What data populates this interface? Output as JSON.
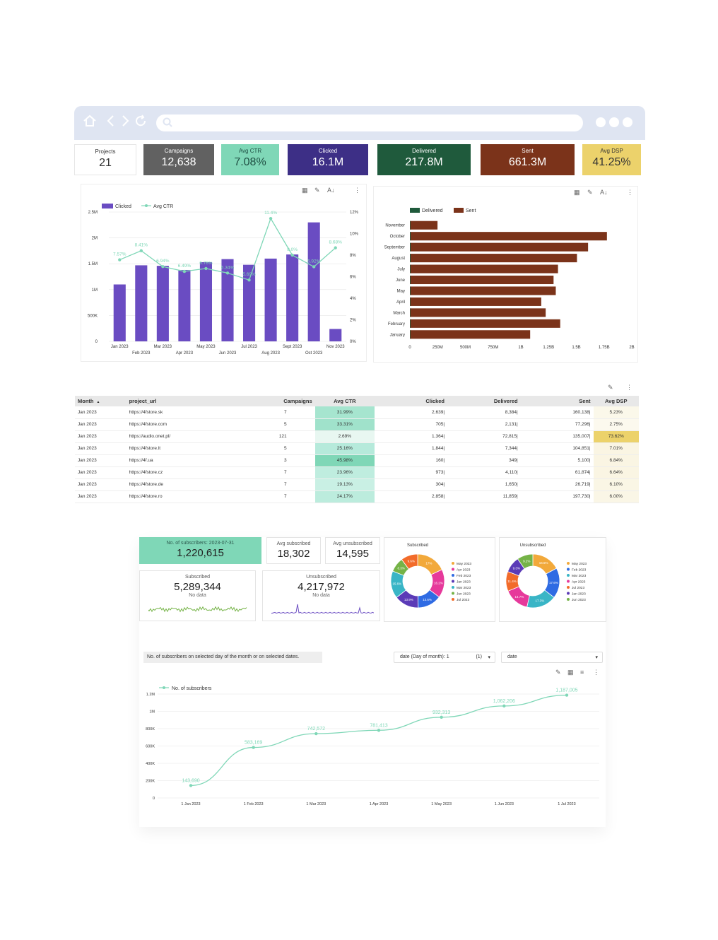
{
  "kpis": [
    {
      "label": "Projects",
      "value": "21",
      "bg": "#ffffff",
      "fg": "#333333"
    },
    {
      "label": "Campaigns",
      "value": "12,638",
      "bg": "#616161",
      "fg": "#ffffff"
    },
    {
      "label": "Avg CTR",
      "value": "7.08%",
      "bg": "#7fd7b7",
      "fg": "#1f4f43"
    },
    {
      "label": "Clicked",
      "value": "16.1M",
      "bg": "#3d2f86",
      "fg": "#ffffff"
    },
    {
      "label": "Delivered",
      "value": "217.8M",
      "bg": "#1f5a3c",
      "fg": "#ffffff"
    },
    {
      "label": "Sent",
      "value": "661.3M",
      "bg": "#7b331a",
      "fg": "#ffffff"
    },
    {
      "label": "Avg DSP",
      "value": "41.25%",
      "bg": "#ecd26b",
      "fg": "#333333"
    }
  ],
  "chart_data": [
    {
      "type": "bar",
      "legend": [
        "Clicked",
        "Avg CTR"
      ],
      "categories": [
        "Jan 2023",
        "Feb 2023",
        "Mar 2023",
        "Apr 2023",
        "May 2023",
        "Jun 2023",
        "Jul 2023",
        "Aug 2023",
        "Sept 2023",
        "Oct 2023",
        "Nov 2023"
      ],
      "x_tick_labels_row1": [
        "Jan 2023",
        "Mar 2023",
        "May 2023",
        "Jul 2023",
        "Sept 2023",
        "Nov 2023"
      ],
      "x_tick_labels_row2": [
        "Feb 2023",
        "Apr 2023",
        "Jun 2023",
        "Aug 2023",
        "Oct 2023"
      ],
      "y_ticks_left": [
        "0",
        "500K",
        "1M",
        "1.5M",
        "2M",
        "2.5M"
      ],
      "y_ticks_right": [
        "0%",
        "2%",
        "4%",
        "6%",
        "8%",
        "10%",
        "12%"
      ],
      "series": [
        {
          "name": "Clicked",
          "values": [
            1100000,
            1470000,
            1460000,
            1380000,
            1530000,
            1590000,
            1480000,
            1600000,
            1680000,
            2300000,
            240000
          ]
        },
        {
          "name": "Avg CTR",
          "values": [
            7.57,
            8.41,
            6.94,
            6.49,
            6.76,
            6.34,
            5.69,
            11.4,
            8.0,
            6.92,
            8.68
          ]
        }
      ],
      "line_labels": [
        "7.57%",
        "8.41%",
        "6.94%",
        "6.49%",
        "6.76%",
        "6.34%",
        "5.69%",
        "11.4%",
        "8.0%",
        "6.92%",
        "8.68%"
      ],
      "ylim_left": [
        0,
        2500000
      ],
      "ylim_right": [
        0,
        12
      ],
      "colors": {
        "bar": "#6a4cc2",
        "line": "#7fd7b7"
      }
    },
    {
      "type": "bar",
      "orientation": "horizontal",
      "legend": [
        "Delivered",
        "Sent"
      ],
      "categories": [
        "November",
        "October",
        "September",
        "August",
        "July",
        "June",
        "May",
        "April",
        "March",
        "February",
        "January"
      ],
      "series": [
        {
          "name": "Delivered",
          "values": [
            4000000,
            6000000,
            6000000,
            6000000,
            5000000,
            5000000,
            5000000,
            4000000,
            4000000,
            5000000,
            4000000
          ]
        },
        {
          "name": "Sent",
          "values": [
            245000000,
            1770000000,
            1600000000,
            1500000000,
            1330000000,
            1290000000,
            1310000000,
            1180000000,
            1220000000,
            1350000000,
            1080000000
          ]
        }
      ],
      "x_ticks": [
        "0",
        "250M",
        "500M",
        "750M",
        "1B",
        "1.25B",
        "1.5B",
        "1.75B",
        "2B"
      ],
      "xlim": [
        0,
        2000000000
      ],
      "colors": {
        "Delivered": "#1f5a3c",
        "Sent": "#7b331a"
      }
    },
    {
      "type": "pie",
      "title": "Subscribed",
      "slices": [
        {
          "label": "May 2023",
          "value": 17,
          "text": "17%",
          "color": "#f2a93b"
        },
        {
          "label": "Apr 2023",
          "value": 16.2,
          "text": "16.2%",
          "color": "#e6399b"
        },
        {
          "label": "Feb 2023",
          "value": 13.6,
          "text": "13.6%",
          "color": "#2f6be3"
        },
        {
          "label": "Jan 2023",
          "value": 13.9,
          "text": "13.9%",
          "color": "#5b3bb7"
        },
        {
          "label": "Mar 2023",
          "value": 15.6,
          "text": "15.6%",
          "color": "#39b5c6"
        },
        {
          "label": "Jun 2023",
          "value": 8.3,
          "text": "8.3%",
          "color": "#75b347"
        },
        {
          "label": "Jul 2023",
          "value": 9.6,
          "text": "9.6%",
          "color": "#f26b2a"
        }
      ]
    },
    {
      "type": "pie",
      "title": "Unsubscribed",
      "slices": [
        {
          "label": "May 2023",
          "value": 16.5,
          "text": "16.5%",
          "color": "#f2a93b"
        },
        {
          "label": "Feb 2023",
          "value": 17.6,
          "text": "17.6%",
          "color": "#2f6be3"
        },
        {
          "label": "Mar 2023",
          "value": 17.3,
          "text": "17.3%",
          "color": "#39b5c6"
        },
        {
          "label": "Apr 2023",
          "value": 14.7,
          "text": "14.7%",
          "color": "#e6399b"
        },
        {
          "label": "Jul 2023",
          "value": 11.4,
          "text": "11.4%",
          "color": "#f26b2a"
        },
        {
          "label": "Jan 2023",
          "value": 9.3,
          "text": "9.3%",
          "color": "#5b3bb7"
        },
        {
          "label": "Jun 2023",
          "value": 9.2,
          "text": "9.2%",
          "color": "#75b347"
        }
      ]
    },
    {
      "type": "line",
      "legend": [
        "No. of subscribers"
      ],
      "x": [
        "1 Jan 2023",
        "1 Feb 2023",
        "1 Mar 2023",
        "1 Apr 2023",
        "1 May 2023",
        "1 Jun 2023",
        "1 Jul 2023"
      ],
      "series": [
        {
          "name": "No. of subscribers",
          "values": [
            143690,
            583169,
            742572,
            781413,
            932313,
            1062206,
            1187005
          ]
        }
      ],
      "point_labels": [
        "143,690",
        "583,169",
        "742,572",
        "781,413",
        "932,313",
        "1,062,206",
        "1,187,005"
      ],
      "y_ticks": [
        "0",
        "200K",
        "400K",
        "600K",
        "800K",
        "1M",
        "1.2M"
      ],
      "ylim": [
        0,
        1200000
      ],
      "color": "#7fd7b7"
    }
  ],
  "pie_legend": {
    "subscribed": [
      "May 2023",
      "Apr 2023",
      "Feb 2023",
      "Jan 2023",
      "Mar 2023",
      "Jun 2023",
      "Jul 2023"
    ],
    "unsubscribed": [
      "May 2023",
      "Feb 2023",
      "Mar 2023",
      "Apr 2023",
      "Jul 2023",
      "Jan 2023",
      "Jun 2023"
    ]
  },
  "table": {
    "headers": [
      "Month",
      "project_url",
      "Campaigns",
      "Avg CTR",
      "Clicked",
      "Delivered",
      "Sent",
      "Avg DSP"
    ],
    "sort_indicator": "▲",
    "rows": [
      [
        "Jan 2023",
        "https://4fstore.sk",
        "7",
        "31.99%",
        "2,639|",
        "8,384|",
        "160,138|",
        "5.23%"
      ],
      [
        "Jan 2023",
        "https://4fstore.com",
        "5",
        "33.31%",
        "705|",
        "2,131|",
        "77,296|",
        "2.75%"
      ],
      [
        "Jan 2023",
        "https://audio.onet.pl/",
        "121",
        "2.69%",
        "1,364|",
        "72,815|",
        "135,007|",
        "73.62%"
      ],
      [
        "Jan 2023",
        "https://4fstore.lt",
        "5",
        "25.16%",
        "1,844|",
        "7,344|",
        "104,851|",
        "7.01%"
      ],
      [
        "Jan 2023",
        "https://4f.ua",
        "3",
        "45.98%",
        "160|",
        "349|",
        "5,100|",
        "6.84%"
      ],
      [
        "Jan 2023",
        "https://4fstore.cz",
        "7",
        "23.96%",
        "973|",
        "4,110|",
        "61,874|",
        "6.64%"
      ],
      [
        "Jan 2023",
        "https://4fstore.de",
        "7",
        "19.13%",
        "304|",
        "1,650|",
        "26,719|",
        "6.10%"
      ],
      [
        "Jan 2023",
        "https://4fstore.ro",
        "7",
        "24.17%",
        "2,858|",
        "11,859|",
        "197,730|",
        "6.00%"
      ]
    ],
    "ctr_shades": [
      "#a6e5cf",
      "#a0e2cb",
      "#e8f7f1",
      "#b6eadb",
      "#7fd7b7",
      "#bfeddf",
      "#c9f0e4",
      "#bcecdd"
    ],
    "dsp_shades": [
      "#fbf8ea",
      "#fcf9ee",
      "#ecd26b",
      "#faf5e3",
      "#faf5e3",
      "#faf5e3",
      "#faf6e5",
      "#faf6e6"
    ]
  },
  "subscribers": {
    "total_label": "No. of subscribers: 2023-07-31",
    "total_value": "1,220,615",
    "avg_sub_label": "Avg subscribed",
    "avg_sub_value": "18,302",
    "avg_unsub_label": "Avg unsubscribed",
    "avg_unsub_value": "14,595",
    "subscribed_label": "Subscribed",
    "subscribed_value": "5,289,344",
    "subscribed_nodata": "No data",
    "unsubscribed_label": "Unsubscribed",
    "unsubscribed_value": "4,217,972",
    "unsubscribed_nodata": "No data",
    "filter_caption": "No. of subscribers on selected day of the month or on selected dates.",
    "select_day": "date (Day of month): 1",
    "select_day_count": "(1)",
    "select_date": "date"
  }
}
